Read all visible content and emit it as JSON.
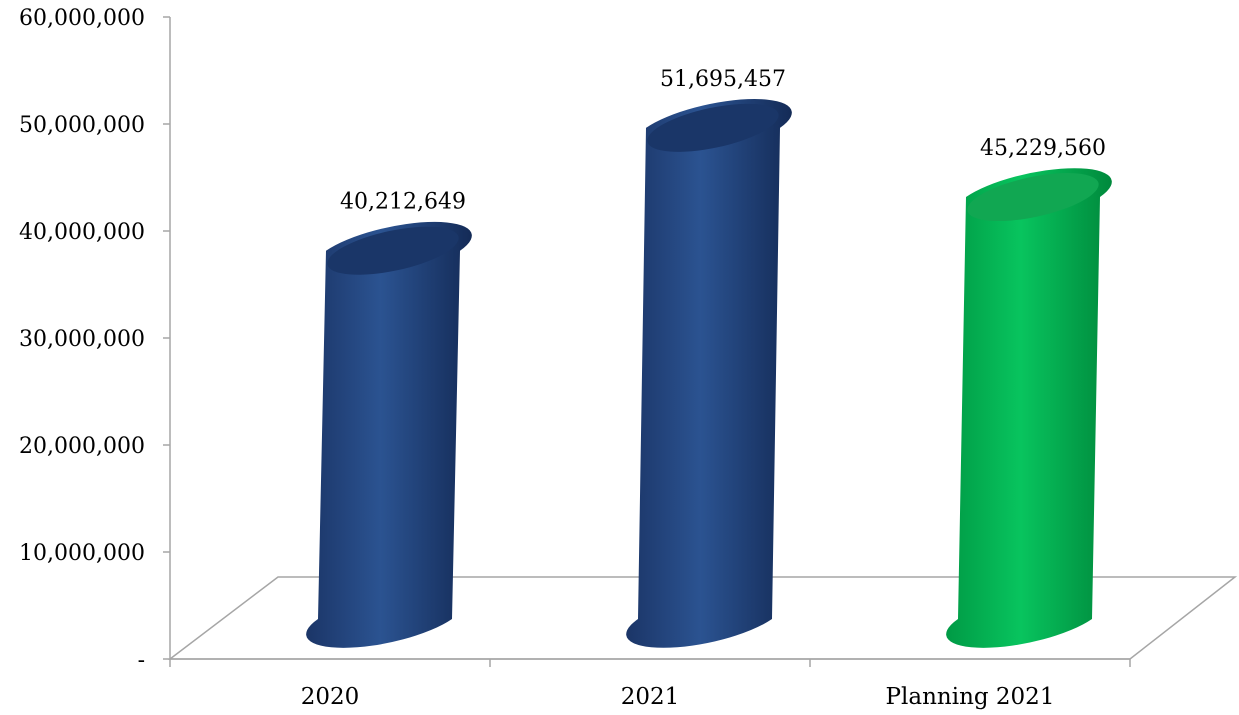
{
  "chart_data": {
    "type": "bar",
    "style": "3d-cylinder",
    "categories": [
      "2020",
      "2021",
      "Planning 2021"
    ],
    "values": [
      40212649,
      51695457,
      45229560
    ],
    "data_labels": [
      "40,212,649",
      "51,695,457",
      "45,229,560"
    ],
    "bar_colors": [
      "#1f3f7a",
      "#1f3f7a",
      "#00b050"
    ],
    "ylim": [
      0,
      60000000
    ],
    "y_ticks": [
      0,
      10000000,
      20000000,
      30000000,
      40000000,
      50000000,
      60000000
    ],
    "y_tick_labels": [
      "-",
      "10,000,000",
      "20,000,000",
      "30,000,000",
      "40,000,000",
      "50,000,000",
      "60,000,000"
    ],
    "grid": false,
    "legend": "none"
  }
}
